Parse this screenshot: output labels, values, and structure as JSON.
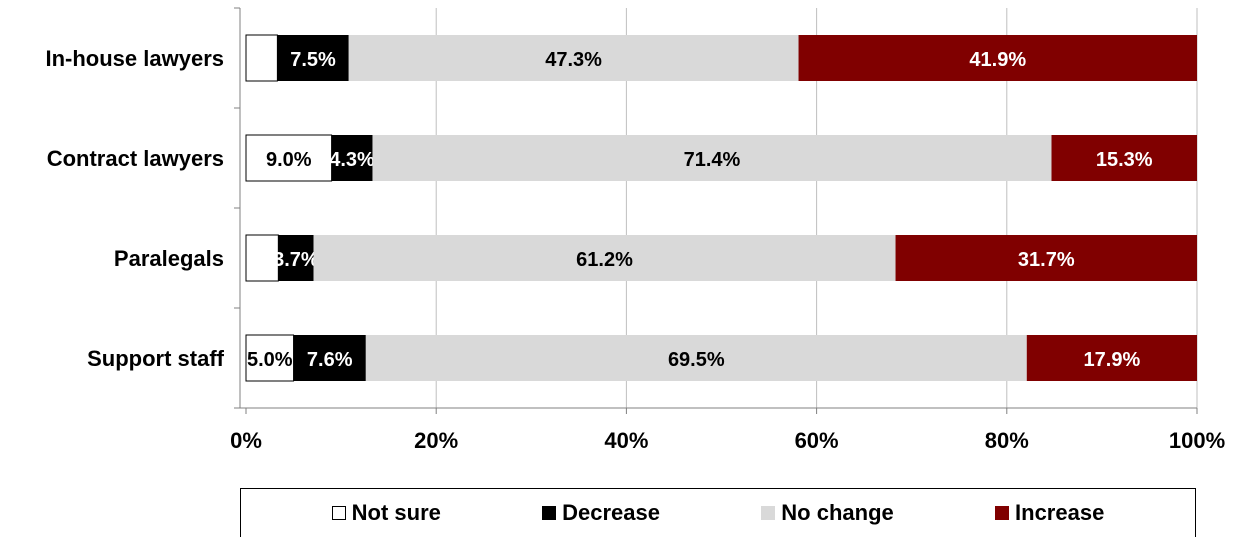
{
  "chart_data": {
    "type": "bar",
    "orientation": "horizontal",
    "stacked": "percent",
    "categories": [
      "In-house lawyers",
      "Contract lawyers",
      "Paralegals",
      "Support staff"
    ],
    "series": [
      {
        "name": "Not sure",
        "color": "#ffffff",
        "values": [
          3.3,
          9.0,
          3.4,
          5.0
        ],
        "labels": [
          "",
          "9.0%",
          "",
          "5.0%"
        ]
      },
      {
        "name": "Decrease",
        "color": "#000000",
        "values": [
          7.5,
          4.3,
          3.7,
          7.6
        ],
        "labels": [
          "7.5%",
          "4.3%",
          "3.7%",
          "7.6%"
        ]
      },
      {
        "name": "No change",
        "color": "#d9d9d9",
        "values": [
          47.3,
          71.4,
          61.2,
          69.5
        ],
        "labels": [
          "47.3%",
          "71.4%",
          "61.2%",
          "69.5%"
        ]
      },
      {
        "name": "Increase",
        "color": "#800000",
        "values": [
          41.9,
          15.3,
          31.7,
          17.9
        ],
        "labels": [
          "41.9%",
          "15.3%",
          "31.7%",
          "17.9%"
        ]
      }
    ],
    "x_ticks": [
      "0%",
      "20%",
      "40%",
      "60%",
      "80%",
      "100%"
    ],
    "xlim": [
      0,
      100
    ],
    "grid": true,
    "legend": "bottom"
  }
}
